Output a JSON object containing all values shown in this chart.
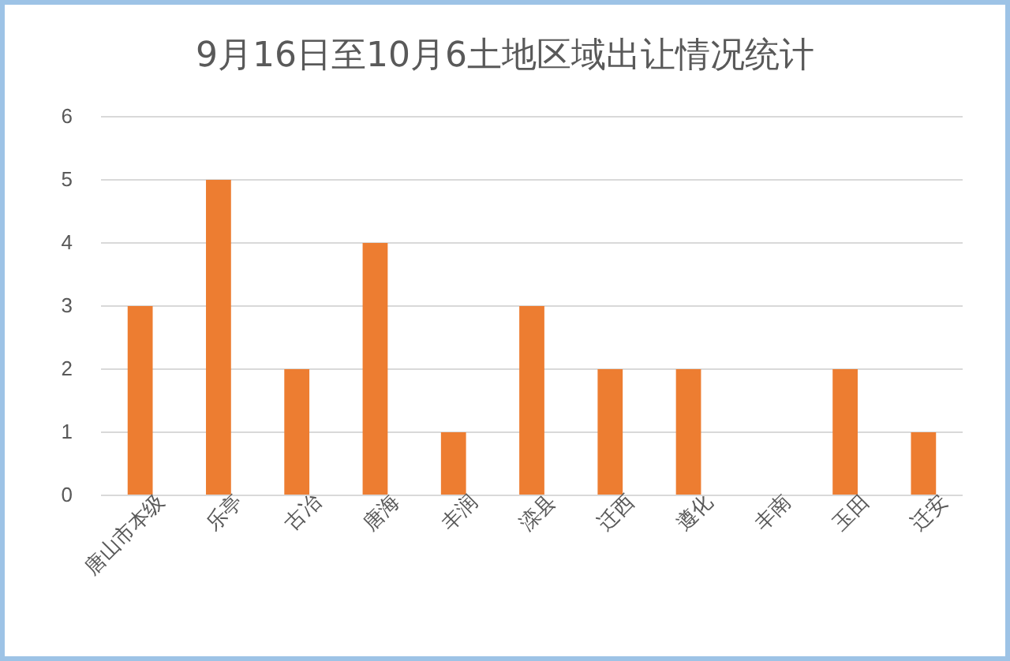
{
  "chart_data": {
    "type": "bar",
    "title": "9月16日至10月6土地区域出让情况统计",
    "categories": [
      "唐山市本级",
      "乐亭",
      "古冶",
      "唐海",
      "丰润",
      "滦县",
      "迁西",
      "遵化",
      "丰南",
      "玉田",
      "迁安"
    ],
    "values": [
      3,
      5,
      2,
      4,
      1,
      3,
      2,
      2,
      0,
      2,
      1
    ],
    "color": "#ed7d31",
    "ylim": [
      0,
      6
    ],
    "yticks": [
      0,
      1,
      2,
      3,
      4,
      5,
      6
    ],
    "grid": "y"
  }
}
